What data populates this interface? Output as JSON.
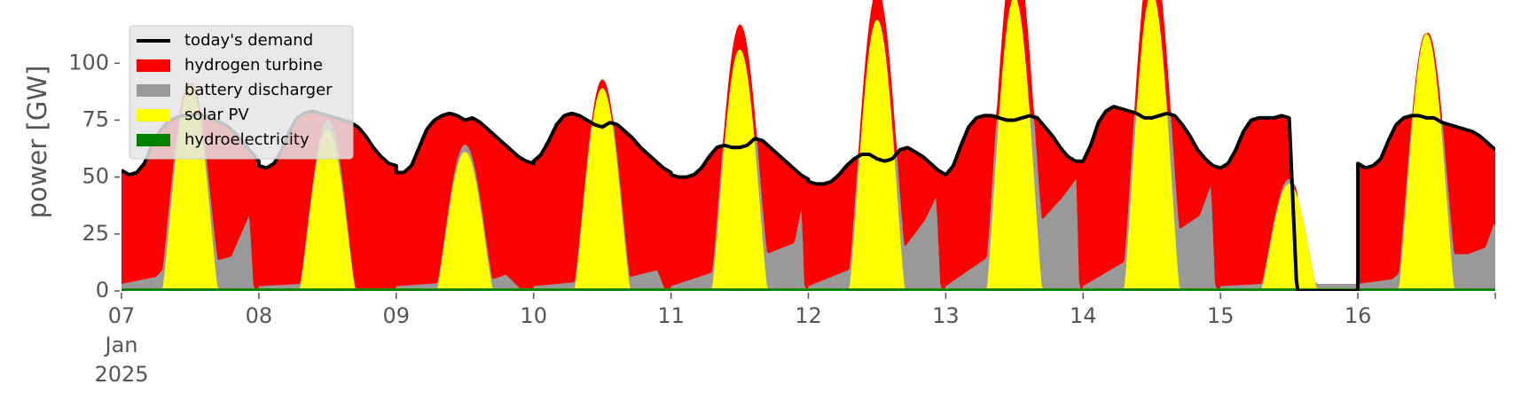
{
  "chart_data": {
    "type": "area",
    "ylabel": "power [GW]",
    "ylim": [
      0,
      120
    ],
    "xlim": [
      "2025-01-07 00:00",
      "2025-01-17 00:00"
    ],
    "y_ticks": [
      "0",
      "25",
      "50",
      "75",
      "100"
    ],
    "y_tick_values": [
      0,
      25,
      50,
      75,
      100
    ],
    "x_ticks": [
      {
        "day": 7,
        "label": [
          "07",
          "Jan",
          "2025"
        ]
      },
      {
        "day": 8,
        "label": [
          "08"
        ]
      },
      {
        "day": 9,
        "label": [
          "09"
        ]
      },
      {
        "day": 10,
        "label": [
          "10"
        ]
      },
      {
        "day": 11,
        "label": [
          "11"
        ]
      },
      {
        "day": 12,
        "label": [
          "12"
        ]
      },
      {
        "day": 13,
        "label": [
          "13"
        ]
      },
      {
        "day": 14,
        "label": [
          "14"
        ]
      },
      {
        "day": 15,
        "label": [
          "15"
        ]
      },
      {
        "day": 16,
        "label": [
          "16"
        ]
      }
    ],
    "grid": false,
    "legend_position": "top-left",
    "legend": [
      {
        "name": "today's demand",
        "color": "#000000",
        "kind": "line"
      },
      {
        "name": "hydrogen turbine",
        "color": "#ff0000",
        "kind": "area"
      },
      {
        "name": "battery discharger",
        "color": "#999999",
        "kind": "area"
      },
      {
        "name": "solar PV",
        "color": "#ffff00",
        "kind": "area"
      },
      {
        "name": "hydroelectricity",
        "color": "#008000",
        "kind": "area"
      }
    ],
    "stack_order": [
      "hydroelectricity",
      "solar PV",
      "battery discharger",
      "hydrogen turbine"
    ],
    "days": [
      {
        "day": 7,
        "demand": [
          53,
          51,
          52,
          56,
          64,
          70,
          74,
          76,
          77,
          77,
          78,
          77,
          75,
          74,
          72,
          69,
          65,
          61,
          57
        ],
        "solar_peak": 90,
        "battery": [
          [
            0,
            2
          ],
          [
            0.25,
            5
          ],
          [
            0.33,
            10
          ],
          [
            0.5,
            0
          ],
          [
            0.68,
            12
          ],
          [
            0.8,
            14
          ],
          [
            0.93,
            32
          ],
          [
            0.96,
            0
          ]
        ]
      },
      {
        "day": 8,
        "demand": [
          55,
          54,
          56,
          62,
          70,
          76,
          78,
          79,
          78,
          77,
          76,
          75,
          74,
          72,
          68,
          63,
          59,
          56,
          55
        ],
        "solar_peak": 70,
        "battery": [
          [
            0,
            1
          ],
          [
            0.3,
            2
          ],
          [
            0.6,
            5
          ],
          [
            0.7,
            0
          ]
        ]
      },
      {
        "day": 9,
        "demand": [
          52,
          52,
          55,
          63,
          71,
          75,
          77,
          78,
          77,
          75,
          76,
          74,
          71,
          68,
          65,
          62,
          59,
          57,
          56
        ],
        "solar_peak": 60,
        "battery": [
          [
            0,
            1
          ],
          [
            0.7,
            4
          ],
          [
            0.8,
            6
          ],
          [
            0.9,
            0
          ]
        ]
      },
      {
        "day": 10,
        "demand": [
          57,
          60,
          66,
          73,
          77,
          78,
          77,
          75,
          73,
          72,
          74,
          73,
          70,
          67,
          63,
          60,
          57,
          54,
          52
        ],
        "solar_peak": 88,
        "battery": [
          [
            0,
            1
          ],
          [
            0.7,
            5
          ],
          [
            0.9,
            8
          ],
          [
            0.95,
            0
          ]
        ]
      },
      {
        "day": 11,
        "demand": [
          51,
          50,
          50,
          51,
          54,
          59,
          63,
          64,
          63,
          63,
          64,
          67,
          66,
          63,
          60,
          57,
          54,
          51,
          49
        ],
        "solar_peak": 105,
        "battery": [
          [
            0,
            1
          ],
          [
            0.65,
            14
          ],
          [
            0.9,
            20
          ],
          [
            0.95,
            35
          ],
          [
            0.97,
            0
          ]
        ]
      },
      {
        "day": 12,
        "demand": [
          48,
          47,
          47,
          48,
          51,
          55,
          58,
          60,
          60,
          58,
          57,
          58,
          62,
          63,
          61,
          59,
          56,
          53,
          51
        ],
        "solar_peak": 118,
        "battery": [
          [
            0,
            1
          ],
          [
            0.7,
            18
          ],
          [
            0.85,
            30
          ],
          [
            0.93,
            40
          ],
          [
            0.96,
            0
          ]
        ]
      },
      {
        "day": 13,
        "demand": [
          51,
          55,
          64,
          72,
          76,
          77,
          77,
          76,
          75,
          75,
          76,
          77,
          76,
          72,
          68,
          63,
          59,
          57,
          57
        ],
        "solar_peak": 128,
        "battery": [
          [
            0,
            1
          ],
          [
            0.7,
            30
          ],
          [
            0.85,
            40
          ],
          [
            0.95,
            48
          ],
          [
            0.97,
            0
          ]
        ]
      },
      {
        "day": 14,
        "demand": [
          57,
          64,
          74,
          79,
          81,
          80,
          79,
          78,
          76,
          76,
          77,
          78,
          77,
          73,
          68,
          62,
          58,
          55,
          54
        ],
        "solar_peak": 130,
        "battery": [
          [
            0,
            1
          ],
          [
            0.7,
            26
          ],
          [
            0.85,
            32
          ],
          [
            0.93,
            45
          ],
          [
            0.96,
            0
          ]
        ]
      },
      {
        "day": 15,
        "demand": [
          54,
          56,
          62,
          70,
          75,
          76,
          76,
          76,
          77,
          76,
          0,
          0,
          0,
          0,
          0,
          0,
          0,
          0,
          0
        ],
        "solar_peak": 46,
        "battery": [
          [
            0,
            1
          ],
          [
            0.3,
            2
          ],
          [
            0.5,
            2
          ]
        ]
      },
      {
        "day": 16,
        "demand": [
          56,
          54,
          55,
          58,
          66,
          73,
          76,
          77,
          77,
          76,
          76,
          74,
          73,
          72,
          71,
          70,
          68,
          65,
          62
        ],
        "solar_peak": 112,
        "battery": [
          [
            0,
            2
          ],
          [
            0.25,
            4
          ],
          [
            0.33,
            8
          ],
          [
            0.5,
            0
          ],
          [
            0.68,
            15
          ],
          [
            0.8,
            15
          ],
          [
            0.93,
            18
          ],
          [
            0.99,
            28
          ]
        ]
      }
    ],
    "hydro_level": 1
  }
}
